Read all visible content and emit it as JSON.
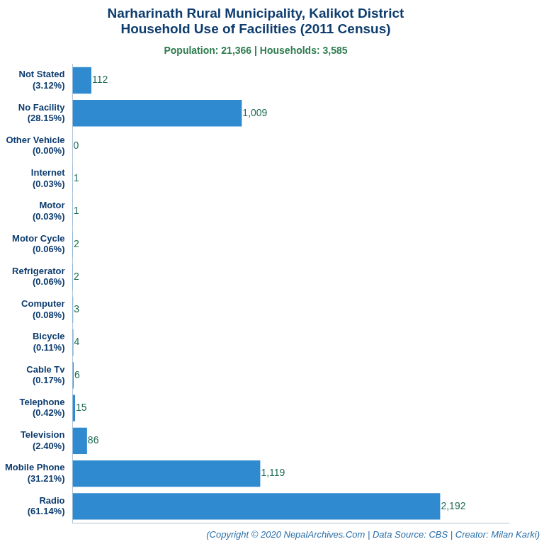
{
  "chart_data": {
    "type": "bar",
    "title": [
      "Narharinath Rural Municipality, Kalikot District",
      "Household Use of Facilities (2011 Census)"
    ],
    "subtitle": "Population: 21,366 | Households: 3,585",
    "annotation": "(Copyright © 2020 NepalArchives.Com | Data Source: CBS | Creator: Milan Karki)",
    "orientation": "horizontal",
    "categories": [
      [
        "Not Stated",
        "(3.12%)"
      ],
      [
        "No Facility",
        "(28.15%)"
      ],
      [
        "Other Vehicle",
        "(0.00%)"
      ],
      [
        "Internet",
        "(0.03%)"
      ],
      [
        "Motor",
        "(0.03%)"
      ],
      [
        "Motor Cycle",
        "(0.06%)"
      ],
      [
        "Refrigerator",
        "(0.06%)"
      ],
      [
        "Computer",
        "(0.08%)"
      ],
      [
        "Bicycle",
        "(0.11%)"
      ],
      [
        "Cable Tv",
        "(0.17%)"
      ],
      [
        "Telephone",
        "(0.42%)"
      ],
      [
        "Television",
        "(2.40%)"
      ],
      [
        "Mobile Phone",
        "(31.21%)"
      ],
      [
        "Radio",
        "(61.14%)"
      ]
    ],
    "values": [
      112,
      1009,
      0,
      1,
      1,
      2,
      2,
      3,
      4,
      6,
      15,
      86,
      1119,
      2192
    ],
    "value_labels": [
      "112",
      "1,009",
      "0",
      "1",
      "1",
      "2",
      "2",
      "3",
      "4",
      "6",
      "15",
      "86",
      "1,119",
      "2,192"
    ],
    "data_labels": true,
    "color": "#2f8ad0",
    "xlim": [
      0,
      2600
    ],
    "grid": false,
    "tick_labels": "y"
  }
}
